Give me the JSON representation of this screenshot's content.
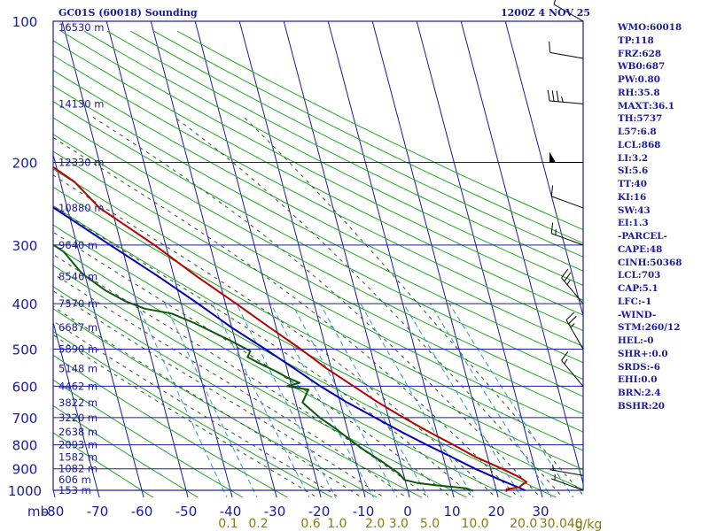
{
  "header": {
    "station": "GC01S (60018) Sounding",
    "time": "1200Z  4 NOV 25"
  },
  "indices": [
    "WMO:60018",
    "TP:118",
    "FRZ:628",
    "WB0:687",
    "PW:0.80",
    "RH:35.8",
    "MAXT:36.1",
    "TH:5737",
    "L57:6.8",
    "LCL:868",
    "LI:3.2",
    "SI:5.6",
    "TT:40",
    "KI:16",
    "SW:43",
    "EI:1.3",
    "-PARCEL-",
    "CAPE:48",
    "CINH:50368",
    "LCL:703",
    "CAP:5.1",
    "LFC:-1",
    "-WIND-",
    "STM:260/12",
    "HEL:-0",
    "SHR+:0.0",
    "SRDS:-6",
    "EHI:0.0",
    "BRN:2.4",
    "BSHR:20"
  ],
  "colors": {
    "grid": "#1a1a9c",
    "dry_adiabat": "#22a822",
    "moist_adiabat": "#335533",
    "mixing_ratio": "#3399cc",
    "temperature": "#bb0000",
    "dewpoint": "#0a5a0a",
    "parcel": "#0000bb"
  },
  "chart_data": {
    "type": "skew-t",
    "xunit_label": "mb",
    "temp_ticks": [
      -80,
      -70,
      -60,
      -50,
      -40,
      -30,
      -20,
      -10,
      0,
      10,
      20,
      30
    ],
    "temp_tick_labels": [
      "-80",
      "-70",
      "-60",
      "-50",
      "-40",
      "-30",
      "-20",
      "-10",
      "0",
      "10",
      "20",
      "30"
    ],
    "temp_range": [
      -80,
      40
    ],
    "pressure_ticks": [
      100,
      200,
      300,
      400,
      500,
      600,
      700,
      800,
      900,
      1000
    ],
    "pressure_range": [
      100,
      1050
    ],
    "log_pressure": true,
    "height_labels": [
      {
        "p": 103,
        "label": "16530 m"
      },
      {
        "p": 150,
        "label": "14130 m"
      },
      {
        "p": 200,
        "label": "12330 m"
      },
      {
        "p": 250,
        "label": "10880 m"
      },
      {
        "p": 300,
        "label": "9640 m"
      },
      {
        "p": 350,
        "label": "8546 m"
      },
      {
        "p": 400,
        "label": "7570 m"
      },
      {
        "p": 450,
        "label": "6687 m"
      },
      {
        "p": 500,
        "label": "5890 m"
      },
      {
        "p": 550,
        "label": "5148 m"
      },
      {
        "p": 600,
        "label": "4462 m"
      },
      {
        "p": 650,
        "label": "3822 m"
      },
      {
        "p": 700,
        "label": "3220 m"
      },
      {
        "p": 750,
        "label": "2638 m"
      },
      {
        "p": 800,
        "label": "2093 m"
      },
      {
        "p": 850,
        "label": "1582 m"
      },
      {
        "p": 900,
        "label": "1082 m"
      },
      {
        "p": 950,
        "label": "606 m"
      },
      {
        "p": 1000,
        "label": "153 m"
      }
    ],
    "mixing_ratio_labels": [
      {
        "w": 0.1,
        "label": "0.1"
      },
      {
        "w": 0.2,
        "label": "0.2"
      },
      {
        "w": 0.6,
        "label": "0.6"
      },
      {
        "w": 1.0,
        "label": "1.0"
      },
      {
        "w": 2.0,
        "label": "2.0"
      },
      {
        "w": 3.0,
        "label": "3.0"
      },
      {
        "w": 5.0,
        "label": "5.0"
      },
      {
        "w": 10.0,
        "label": "10.0"
      },
      {
        "w": 20.0,
        "label": "20.0"
      },
      {
        "w": 30.0,
        "label": "30.0"
      },
      {
        "w": 40.0,
        "label": "40"
      }
    ],
    "mixing_ratio_unit": "g/kg",
    "temperature": [
      {
        "p": 1007,
        "t": 22.2
      },
      {
        "p": 995,
        "t": 22.4
      },
      {
        "p": 985,
        "t": 25.4
      },
      {
        "p": 975,
        "t": 26.0
      },
      {
        "p": 960,
        "t": 27.3
      },
      {
        "p": 940,
        "t": 26.2
      },
      {
        "p": 900,
        "t": 22.6
      },
      {
        "p": 850,
        "t": 17.4
      },
      {
        "p": 800,
        "t": 13.0
      },
      {
        "p": 750,
        "t": 8.2
      },
      {
        "p": 700,
        "t": 3.4
      },
      {
        "p": 650,
        "t": -1.4
      },
      {
        "p": 600,
        "t": -6.0
      },
      {
        "p": 550,
        "t": -11.0
      },
      {
        "p": 500,
        "t": -15.7
      },
      {
        "p": 450,
        "t": -21.4
      },
      {
        "p": 400,
        "t": -27.6
      },
      {
        "p": 350,
        "t": -34.8
      },
      {
        "p": 300,
        "t": -42.5
      },
      {
        "p": 250,
        "t": -52.7
      },
      {
        "p": 220,
        "t": -56.8
      },
      {
        "p": 200,
        "t": -62.0
      },
      {
        "p": 170,
        "t": -69.1
      },
      {
        "p": 150,
        "t": -70.6
      },
      {
        "p": 130,
        "t": -77.2
      },
      {
        "p": 115,
        "t": -81.3
      },
      {
        "p": 105,
        "t": -82.3
      },
      {
        "p": 101,
        "t": -81.9
      }
    ],
    "dewpoint": [
      {
        "p": 1003,
        "t": 14.8
      },
      {
        "p": 990,
        "t": 13.3
      },
      {
        "p": 975,
        "t": 6.5
      },
      {
        "p": 965,
        "t": 2.7
      },
      {
        "p": 950,
        "t": -0.1
      },
      {
        "p": 920,
        "t": -1.0
      },
      {
        "p": 870,
        "t": -4.0
      },
      {
        "p": 820,
        "t": -7.5
      },
      {
        "p": 780,
        "t": -10.0
      },
      {
        "p": 740,
        "t": -12.5
      },
      {
        "p": 700,
        "t": -15.5
      },
      {
        "p": 650,
        "t": -18.5
      },
      {
        "p": 610,
        "t": -16.4
      },
      {
        "p": 600,
        "t": -21.0
      },
      {
        "p": 590,
        "t": -18.0
      },
      {
        "p": 575,
        "t": -20.5
      },
      {
        "p": 560,
        "t": -22.3
      },
      {
        "p": 540,
        "t": -25.3
      },
      {
        "p": 520,
        "t": -28.2
      },
      {
        "p": 505,
        "t": -27.2
      },
      {
        "p": 480,
        "t": -31.0
      },
      {
        "p": 440,
        "t": -38.2
      },
      {
        "p": 420,
        "t": -42.7
      },
      {
        "p": 410,
        "t": -48.5
      },
      {
        "p": 395,
        "t": -52.5
      },
      {
        "p": 375,
        "t": -56.3
      },
      {
        "p": 345,
        "t": -60.6
      },
      {
        "p": 310,
        "t": -63.4
      },
      {
        "p": 290,
        "t": -67.2
      },
      {
        "p": 270,
        "t": -68.9
      },
      {
        "p": 240,
        "t": -70.0
      },
      {
        "p": 225,
        "t": -78.4
      },
      {
        "p": 205,
        "t": -84.8
      },
      {
        "p": 180,
        "t": -89.2
      },
      {
        "p": 165,
        "t": -95.0
      },
      {
        "p": 150,
        "t": -99.5
      }
    ],
    "parcel": [
      {
        "p": 1000,
        "t": 26.5
      },
      {
        "p": 950,
        "t": 21.5
      },
      {
        "p": 900,
        "t": 16.5
      },
      {
        "p": 850,
        "t": 12.0
      },
      {
        "p": 800,
        "t": 7.0
      },
      {
        "p": 750,
        "t": 2.0
      },
      {
        "p": 700,
        "t": -3.0
      },
      {
        "p": 650,
        "t": -8.4
      },
      {
        "p": 600,
        "t": -13.5
      },
      {
        "p": 550,
        "t": -18.3
      },
      {
        "p": 500,
        "t": -23.7
      },
      {
        "p": 450,
        "t": -30.0
      },
      {
        "p": 400,
        "t": -36.2
      },
      {
        "p": 350,
        "t": -43.5
      },
      {
        "p": 300,
        "t": -52.5
      },
      {
        "p": 250,
        "t": -63.0
      },
      {
        "p": 200,
        "t": -76.0
      },
      {
        "p": 160,
        "t": -92.0
      }
    ],
    "wind_barbs": [
      {
        "p": 1000,
        "dir": 290,
        "spd": 5
      },
      {
        "p": 930,
        "dir": 280,
        "spd": 5
      },
      {
        "p": 600,
        "dir": 320,
        "spd": 15
      },
      {
        "p": 500,
        "dir": 330,
        "spd": 25
      },
      {
        "p": 400,
        "dir": 320,
        "spd": 25
      },
      {
        "p": 300,
        "dir": 290,
        "spd": 15
      },
      {
        "p": 250,
        "dir": 290,
        "spd": 10
      },
      {
        "p": 200,
        "dir": 270,
        "spd": 50
      },
      {
        "p": 150,
        "dir": 275,
        "spd": 35
      },
      {
        "p": 120,
        "dir": 280,
        "spd": 10
      },
      {
        "p": 100,
        "dir": 300,
        "spd": 10
      }
    ]
  }
}
